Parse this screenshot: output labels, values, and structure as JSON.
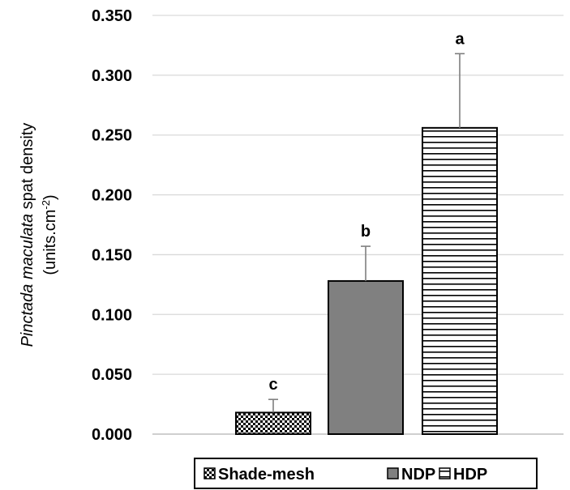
{
  "chart_data": {
    "type": "bar",
    "title": "",
    "ylabel_italic": "Pinctada maculata",
    "ylabel_rest": " spat density",
    "ylabel_line2_prefix": "(units.cm",
    "ylabel_line2_sup": "-2",
    "ylabel_line2_suffix": ")",
    "ylim": [
      0,
      0.35
    ],
    "yticks": [
      {
        "value": 0.0,
        "label": "0.000"
      },
      {
        "value": 0.05,
        "label": "0.050"
      },
      {
        "value": 0.1,
        "label": "0.100"
      },
      {
        "value": 0.15,
        "label": "0.150"
      },
      {
        "value": 0.2,
        "label": "0.200"
      },
      {
        "value": 0.25,
        "label": "0.250"
      },
      {
        "value": 0.3,
        "label": "0.300"
      },
      {
        "value": 0.35,
        "label": "0.350"
      }
    ],
    "grid": true,
    "legend_position": "bottom",
    "series": [
      {
        "name": "Shade-mesh",
        "value": 0.018,
        "error": 0.011,
        "sig": "c",
        "pattern": "checker",
        "color": "#000000"
      },
      {
        "name": "NDP",
        "value": 0.128,
        "error": 0.029,
        "sig": "b",
        "pattern": "solid",
        "color": "#808080"
      },
      {
        "name": "HDP",
        "value": 0.256,
        "error": 0.062,
        "sig": "a",
        "pattern": "hlines",
        "color": "#000000"
      }
    ]
  }
}
